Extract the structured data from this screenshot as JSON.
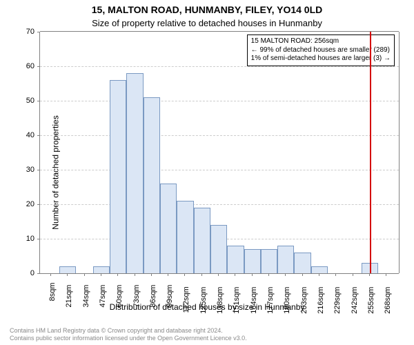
{
  "chart": {
    "type": "histogram",
    "title_main": "15, MALTON ROAD, HUNMANBY, FILEY, YO14 0LD",
    "title_sub": "Size of property relative to detached houses in Hunmanby",
    "title_main_fontsize": 14,
    "title_sub_fontsize": 13,
    "ylabel": "Number of detached properties",
    "xlabel": "Distribution of detached houses by size in Hunmanby",
    "label_fontsize": 12,
    "tick_fontsize": 11,
    "background_color": "#ffffff",
    "plot_background_color": "#ffffff",
    "grid_color": "#cccccc",
    "axis_color": "#808080",
    "bar_fill": "#dbe6f5",
    "bar_border": "#7a99c2",
    "bar_border_width": 1,
    "bar_width_ratio": 1.0,
    "vline_color": "#d40000",
    "vline_x": 256,
    "xlim": [
      0,
      278
    ],
    "ylim": [
      0,
      70
    ],
    "ytick_step": 10,
    "xtick_start": 8,
    "xtick_step": 13,
    "xtick_count": 21,
    "xtick_suffix": "sqm",
    "categories_start": 2,
    "categories_step": 13,
    "values": [
      0,
      2,
      0,
      2,
      56,
      58,
      51,
      26,
      21,
      19,
      14,
      8,
      7,
      7,
      8,
      6,
      2,
      0,
      0,
      3,
      0
    ],
    "annotation": {
      "line1": "15 MALTON ROAD: 256sqm",
      "line2": "← 99% of detached houses are smaller (289)",
      "line3": "1% of semi-detached houses are larger (3) →",
      "fontsize": 10,
      "border_color": "#000000",
      "background": "#ffffff"
    }
  },
  "footer": {
    "line1": "Contains HM Land Registry data © Crown copyright and database right 2024.",
    "line2": "Contains public sector information licensed under the Open Government Licence v3.0.",
    "color": "#888888",
    "fontsize": 9
  }
}
